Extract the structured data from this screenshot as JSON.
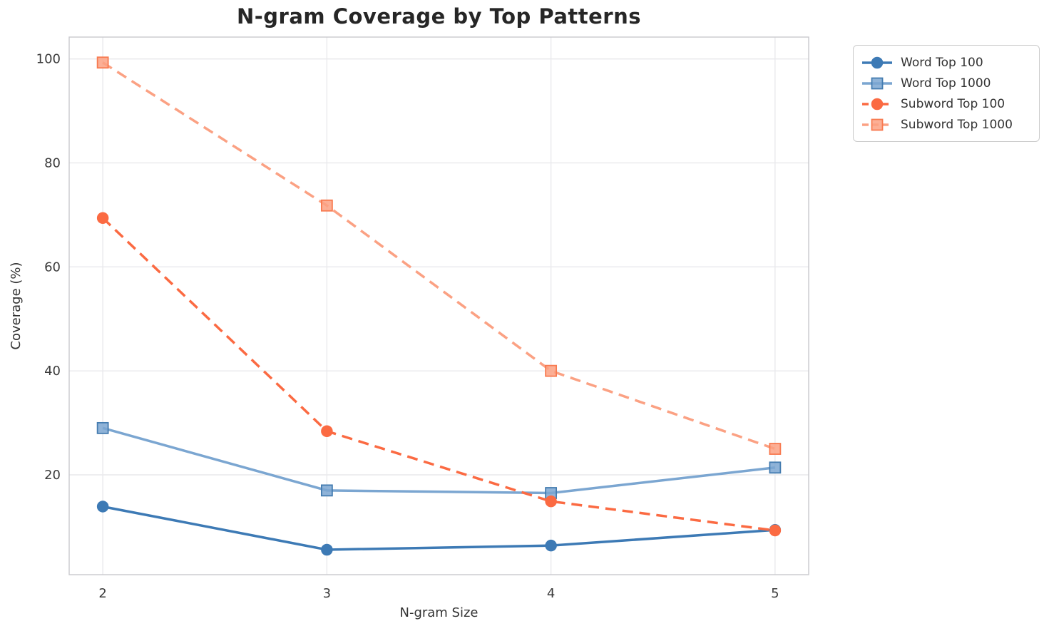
{
  "chart_data": {
    "type": "line",
    "title": "N-gram Coverage by Top Patterns",
    "xlabel": "N-gram Size",
    "ylabel": "Coverage (%)",
    "x": [
      2,
      3,
      4,
      5
    ],
    "xticks": [
      2,
      3,
      4,
      5
    ],
    "yticks": [
      20,
      40,
      60,
      80,
      100
    ],
    "xlim": [
      1.85,
      5.15
    ],
    "ylim": [
      0.8,
      104.2
    ],
    "grid": true,
    "legend_position": "outside upper right",
    "series": [
      {
        "name": "Word Top 100",
        "values": [
          13.9,
          5.6,
          6.4,
          9.4
        ],
        "color": "#3d7ab5",
        "marker": "circle",
        "marker_edge": "#3d7ab5",
        "line": "solid"
      },
      {
        "name": "Word Top 1000",
        "values": [
          29.0,
          17.0,
          16.5,
          21.4
        ],
        "color": "#7ba6d1",
        "marker": "square",
        "marker_edge": "#447cb0",
        "line": "solid"
      },
      {
        "name": "Subword Top 100",
        "values": [
          69.4,
          28.4,
          14.9,
          9.3
        ],
        "color": "#fb6a42",
        "marker": "circle",
        "marker_edge": "#fb6a42",
        "line": "dashed"
      },
      {
        "name": "Subword Top 1000",
        "values": [
          99.3,
          71.8,
          40.0,
          25.0
        ],
        "color": "#fba183",
        "marker": "square",
        "marker_edge": "#f87a50",
        "line": "dashed"
      }
    ],
    "style": {
      "grid_color": "#e9e9ec",
      "spine_color": "#c9c9cd",
      "tick_label_color": "#3b3b3b",
      "title_color": "#262626",
      "axis_label_color": "#333333",
      "line_width": 3.5,
      "dash_pattern": "15 9",
      "marker_radius": 7.5
    }
  }
}
